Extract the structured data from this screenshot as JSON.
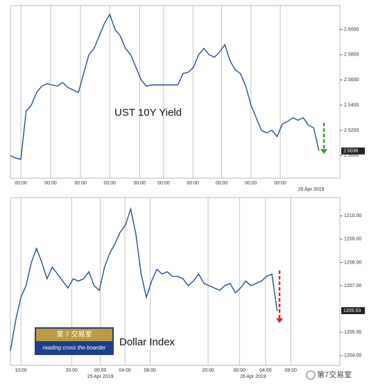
{
  "chart_data": [
    {
      "type": "line",
      "annotation": "UST 10Y Yield",
      "color": "#1f4e8c",
      "values": [
        2.5,
        2.498,
        2.497,
        2.535,
        2.54,
        2.55,
        2.555,
        2.557,
        2.556,
        2.555,
        2.558,
        2.554,
        2.552,
        2.55,
        2.565,
        2.58,
        2.585,
        2.595,
        2.605,
        2.612,
        2.6,
        2.595,
        2.585,
        2.58,
        2.57,
        2.56,
        2.555,
        2.556,
        2.556,
        2.556,
        2.556,
        2.556,
        2.556,
        2.565,
        2.566,
        2.57,
        2.58,
        2.585,
        2.58,
        2.578,
        2.582,
        2.588,
        2.575,
        2.568,
        2.565,
        2.555,
        2.54,
        2.53,
        2.52,
        2.518,
        2.52,
        2.515,
        2.525,
        2.527,
        2.53,
        2.528,
        2.53,
        2.524,
        2.522,
        2.5036
      ],
      "xlim": [
        0,
        63
      ],
      "xticks": [
        {
          "value": 2,
          "label": "00:00"
        },
        {
          "value": 7.7,
          "label": "00:00"
        },
        {
          "value": 13.4,
          "label": "00:00"
        },
        {
          "value": 19,
          "label": "00:00"
        },
        {
          "value": 24.7,
          "label": "00:00"
        },
        {
          "value": 29.3,
          "label": "00:00"
        },
        {
          "value": 34.9,
          "label": "00:00"
        },
        {
          "value": 40.4,
          "label": "00:00"
        },
        {
          "value": 46,
          "label": "00:00"
        },
        {
          "value": 51.6,
          "label": "00:00"
        }
      ],
      "date_labels": [
        {
          "value": 57.5,
          "label": "26 Apr 2019"
        }
      ],
      "ylim": [
        2.482,
        2.619
      ],
      "yticks": [
        {
          "value": 2.5,
          "label": "2.5000"
        },
        {
          "value": 2.52,
          "label": "2.5200"
        },
        {
          "value": 2.54,
          "label": "2.5400"
        },
        {
          "value": 2.56,
          "label": "2.5600"
        },
        {
          "value": 2.58,
          "label": "2.5800"
        },
        {
          "value": 2.6,
          "label": "2.6000"
        }
      ],
      "arrow_color": "#2e9e2e"
    },
    {
      "type": "line",
      "annotation": "Dollar Index",
      "color": "#1f4e8c",
      "values": [
        1204.2,
        1205.5,
        1206.5,
        1207.0,
        1208.0,
        1208.6,
        1208.0,
        1207.3,
        1207.8,
        1207.5,
        1207.2,
        1206.9,
        1207.3,
        1207.2,
        1207.3,
        1207.6,
        1207.0,
        1206.8,
        1207.8,
        1208.4,
        1208.8,
        1209.3,
        1209.6,
        1210.3,
        1209.2,
        1207.5,
        1206.5,
        1207.2,
        1207.7,
        1207.5,
        1207.6,
        1207.4,
        1207.4,
        1207.3,
        1207.0,
        1207.2,
        1207.5,
        1207.1,
        1207.0,
        1206.9,
        1206.8,
        1207.0,
        1207.1,
        1206.7,
        1206.9,
        1207.2,
        1207.0,
        1207.1,
        1207.2,
        1207.4,
        1207.5,
        1205.93
      ],
      "xlim": [
        0,
        63
      ],
      "xticks": [
        {
          "value": 2,
          "label": "10:00"
        },
        {
          "value": 11.7,
          "label": "20:00"
        },
        {
          "value": 17.2,
          "label": "00:00"
        },
        {
          "value": 21.9,
          "label": "04:00"
        },
        {
          "value": 26.7,
          "label": "08:00"
        },
        {
          "value": 37.8,
          "label": "20:00"
        },
        {
          "value": 43.8,
          "label": "00:00"
        },
        {
          "value": 48.8,
          "label": "04:00"
        },
        {
          "value": 53.6,
          "label": "08:00"
        }
      ],
      "date_labels": [
        {
          "value": 17.2,
          "label": "25 Apr 2019"
        },
        {
          "value": 46.4,
          "label": "26 Apr 2019"
        }
      ],
      "ylim": [
        1203.58,
        1210.78
      ],
      "yticks": [
        {
          "value": 1204,
          "label": "1204.00"
        },
        {
          "value": 1205,
          "label": "1205.00"
        },
        {
          "value": 1207,
          "label": "1207.00"
        },
        {
          "value": 1208,
          "label": "1208.00"
        },
        {
          "value": 1209,
          "label": "1209.00"
        },
        {
          "value": 1210,
          "label": "1210.00"
        }
      ],
      "arrow_color": "#e02020"
    }
  ],
  "logo": {
    "title": "第 7 交易室",
    "subtitle": "reading cross the boarder"
  },
  "watermark": "第7交易室"
}
